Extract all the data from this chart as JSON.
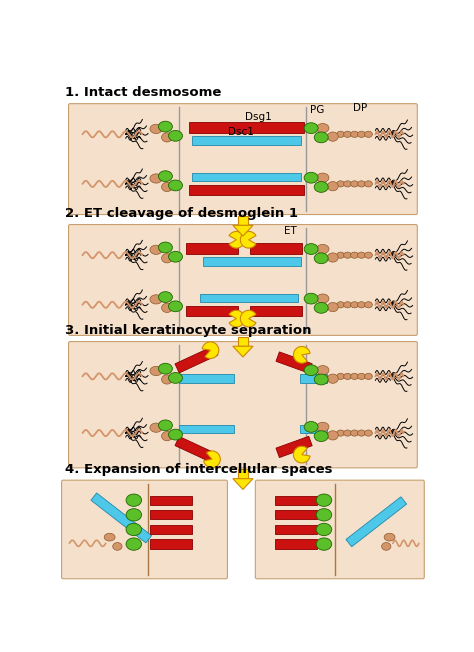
{
  "red": "#CC1111",
  "blue": "#4DC8E8",
  "green": "#5BBF2A",
  "tan": "#D4956A",
  "yellow": "#FFE600",
  "panel_bg": "#F5E0CC",
  "white": "#FFFFFF",
  "section_labels": [
    "1. Intact desmosome",
    "2. ET cleavage of desmoglein 1",
    "3. Initial keratinocyte separation",
    "4. Expansion of intercellular spaces"
  ]
}
